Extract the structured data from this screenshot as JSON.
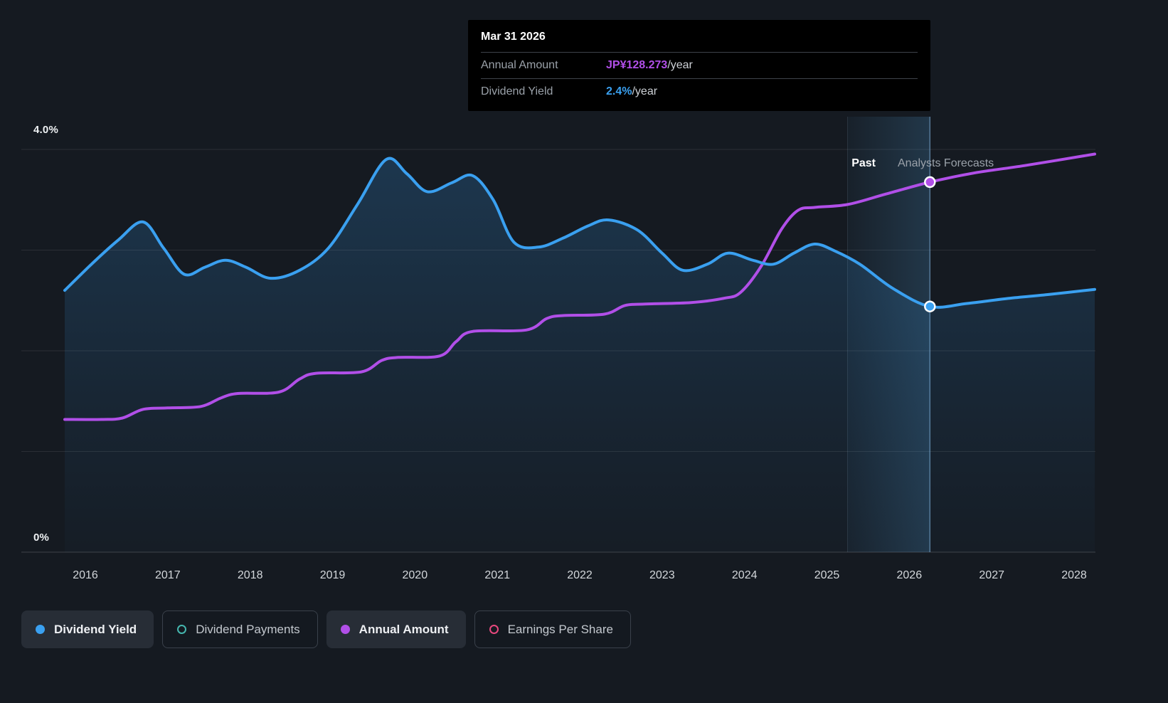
{
  "colors": {
    "background": "#151a21",
    "dividend_yield": "#3aa0f0",
    "annual_amount": "#b14fe8",
    "dividend_payments": "#45b6ae",
    "earnings_per_share": "#e8487e"
  },
  "tooltip": {
    "date": "Mar 31 2026",
    "rows": [
      {
        "label": "Annual Amount",
        "value": "JP¥128.273",
        "suffix": "/year"
      },
      {
        "label": "Dividend Yield",
        "value": "2.4%",
        "suffix": "/year"
      }
    ]
  },
  "annotations": {
    "past": "Past",
    "forecast": "Analysts Forecasts"
  },
  "y_axis": {
    "top": "4.0%",
    "bottom": "0%"
  },
  "legend": {
    "items": [
      {
        "label": "Dividend Yield",
        "marker": "filled",
        "color": "#3aa0f0",
        "active": true
      },
      {
        "label": "Dividend Payments",
        "marker": "outline",
        "color": "#45b6ae",
        "active": false
      },
      {
        "label": "Annual Amount",
        "marker": "filled",
        "color": "#b14fe8",
        "active": true
      },
      {
        "label": "Earnings Per Share",
        "marker": "outline",
        "color": "#e8487e",
        "active": false
      }
    ]
  },
  "chart_data": {
    "type": "area",
    "title": "Dividend yield and annual dividend amount, past and analysts forecasts",
    "legend_position": "bottom",
    "x_ticks": [
      "2016",
      "2017",
      "2018",
      "2019",
      "2020",
      "2021",
      "2022",
      "2023",
      "2024",
      "2025",
      "2026",
      "2027",
      "2028"
    ],
    "x_domain": [
      2015.75,
      2028.25
    ],
    "gridlines_yield": [
      1,
      2,
      3,
      4
    ],
    "forecast_band": {
      "from": 2025.25,
      "to": 2026.25
    },
    "hover_x": 2026.25,
    "scales": {
      "x": {
        "domain": [
          2016,
          2028
        ],
        "range": [
          120,
          1510
        ]
      },
      "yield": {
        "domain": [
          0,
          4
        ],
        "range": [
          776,
          210
        ]
      },
      "amount": {
        "domain": [
          0,
          139.6
        ],
        "range": [
          776,
          210
        ]
      }
    },
    "series": [
      {
        "name": "Dividend Yield",
        "unit": "%",
        "axis": "yield",
        "style": "area",
        "color": "#3aa0f0",
        "points": [
          [
            2015.75,
            2.6
          ],
          [
            2016.1,
            2.88
          ],
          [
            2016.4,
            3.1
          ],
          [
            2016.7,
            3.28
          ],
          [
            2016.95,
            3.02
          ],
          [
            2017.2,
            2.76
          ],
          [
            2017.45,
            2.83
          ],
          [
            2017.7,
            2.9
          ],
          [
            2017.95,
            2.83
          ],
          [
            2018.25,
            2.72
          ],
          [
            2018.6,
            2.8
          ],
          [
            2018.95,
            3.02
          ],
          [
            2019.3,
            3.45
          ],
          [
            2019.65,
            3.9
          ],
          [
            2019.9,
            3.76
          ],
          [
            2020.15,
            3.58
          ],
          [
            2020.45,
            3.67
          ],
          [
            2020.7,
            3.74
          ],
          [
            2020.95,
            3.5
          ],
          [
            2021.2,
            3.08
          ],
          [
            2021.5,
            3.03
          ],
          [
            2021.8,
            3.12
          ],
          [
            2022.1,
            3.24
          ],
          [
            2022.35,
            3.3
          ],
          [
            2022.7,
            3.2
          ],
          [
            2023.0,
            2.97
          ],
          [
            2023.25,
            2.8
          ],
          [
            2023.55,
            2.86
          ],
          [
            2023.8,
            2.97
          ],
          [
            2024.1,
            2.9
          ],
          [
            2024.35,
            2.86
          ],
          [
            2024.6,
            2.97
          ],
          [
            2024.85,
            3.06
          ],
          [
            2025.1,
            2.99
          ],
          [
            2025.4,
            2.86
          ],
          [
            2025.8,
            2.62
          ],
          [
            2026.25,
            2.44
          ],
          [
            2026.7,
            2.47
          ],
          [
            2027.2,
            2.52
          ],
          [
            2027.7,
            2.56
          ],
          [
            2028.25,
            2.61
          ]
        ]
      },
      {
        "name": "Annual Amount",
        "unit": "JP¥/year",
        "axis": "amount",
        "style": "line",
        "color": "#b14fe8",
        "points": [
          [
            2015.75,
            46.0
          ],
          [
            2016.2,
            46.0
          ],
          [
            2016.45,
            46.5
          ],
          [
            2016.7,
            49.5
          ],
          [
            2017.0,
            50.0
          ],
          [
            2017.4,
            50.5
          ],
          [
            2017.65,
            53.5
          ],
          [
            2017.85,
            55.0
          ],
          [
            2018.35,
            55.5
          ],
          [
            2018.6,
            60.0
          ],
          [
            2018.8,
            62.0
          ],
          [
            2019.35,
            62.5
          ],
          [
            2019.6,
            66.5
          ],
          [
            2019.8,
            67.5
          ],
          [
            2020.3,
            68.0
          ],
          [
            2020.5,
            73.0
          ],
          [
            2020.7,
            76.5
          ],
          [
            2021.35,
            77.0
          ],
          [
            2021.6,
            81.0
          ],
          [
            2021.8,
            82.0
          ],
          [
            2022.3,
            82.5
          ],
          [
            2022.55,
            85.5
          ],
          [
            2022.8,
            86.0
          ],
          [
            2023.35,
            86.5
          ],
          [
            2023.75,
            88.0
          ],
          [
            2023.95,
            90.0
          ],
          [
            2024.2,
            99.0
          ],
          [
            2024.45,
            112.0
          ],
          [
            2024.65,
            118.5
          ],
          [
            2024.85,
            119.5
          ],
          [
            2025.25,
            120.5
          ],
          [
            2025.7,
            124.0
          ],
          [
            2026.25,
            128.273
          ],
          [
            2026.8,
            131.5
          ],
          [
            2027.4,
            134.0
          ],
          [
            2028.25,
            138.0
          ]
        ]
      }
    ],
    "markers": [
      {
        "series": "Annual Amount",
        "x": 2026.25,
        "value": 128.273
      },
      {
        "series": "Dividend Yield",
        "x": 2026.25,
        "value": 2.44
      }
    ]
  }
}
